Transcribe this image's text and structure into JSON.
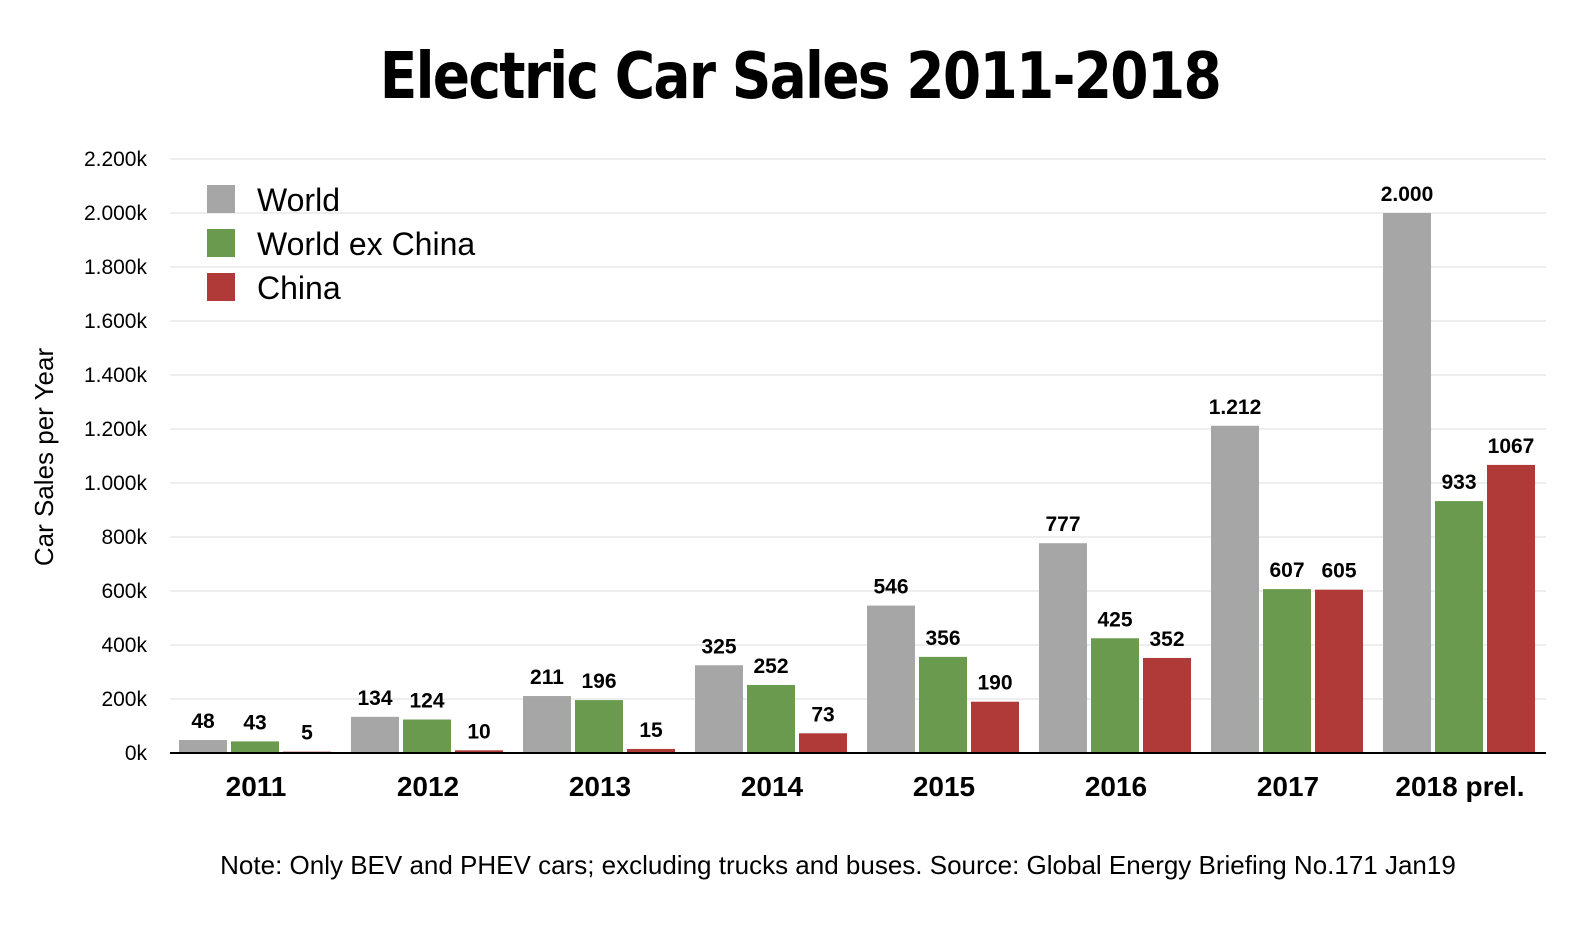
{
  "chart_data": {
    "type": "bar",
    "title": "Electric Car Sales 2011-2018",
    "ylabel": "Car Sales per Year",
    "xlabel": "",
    "ylim": [
      0,
      2200
    ],
    "yticks": [
      0,
      200,
      400,
      600,
      800,
      1000,
      1200,
      1400,
      1600,
      1800,
      2000,
      2200
    ],
    "ytick_labels": [
      "0k",
      "200k",
      "400k",
      "600k",
      "800k",
      "1.000k",
      "1.200k",
      "1.400k",
      "1.600k",
      "1.800k",
      "2.000k",
      "2.200k"
    ],
    "grid": true,
    "legend_position": "top-left",
    "categories": [
      "2011",
      "2012",
      "2013",
      "2014",
      "2015",
      "2016",
      "2017",
      "2018 prel."
    ],
    "series": [
      {
        "name": "World",
        "color": "#a6a6a6",
        "values": [
          48,
          134,
          211,
          325,
          546,
          777,
          1212,
          2000
        ],
        "labels": [
          "48",
          "134",
          "211",
          "325",
          "546",
          "777",
          "1.212",
          "2.000"
        ]
      },
      {
        "name": "World ex China",
        "color": "#6a9a4d",
        "values": [
          43,
          124,
          196,
          252,
          356,
          425,
          607,
          933
        ],
        "labels": [
          "43",
          "124",
          "196",
          "252",
          "356",
          "425",
          "607",
          "933"
        ]
      },
      {
        "name": "China",
        "color": "#b03a38",
        "values": [
          5,
          10,
          15,
          73,
          190,
          352,
          605,
          1067
        ],
        "labels": [
          "5",
          "10",
          "15",
          "73",
          "190",
          "352",
          "605",
          "1067"
        ]
      }
    ],
    "note": "Note: Only BEV and PHEV cars; excluding trucks and buses. Source: Global Energy Briefing No.171 Jan19"
  }
}
